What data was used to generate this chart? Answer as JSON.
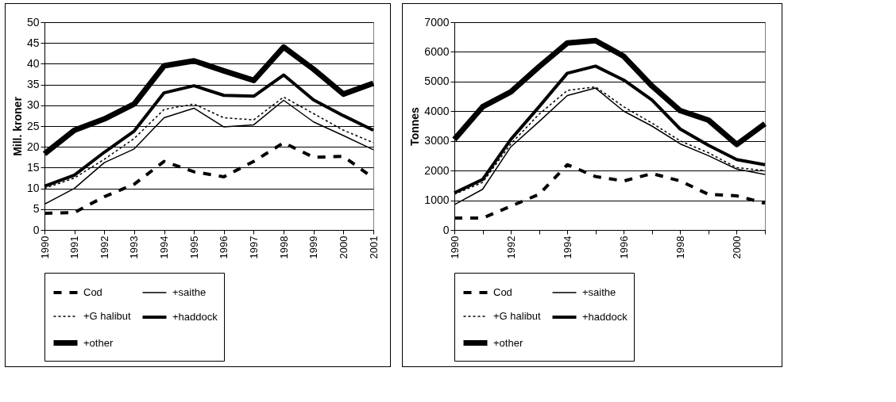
{
  "chart_data": [
    {
      "type": "line",
      "ylabel": "Mill. kroner",
      "x": [
        1990,
        1991,
        1992,
        1993,
        1994,
        1995,
        1996,
        1997,
        1998,
        1999,
        2000,
        2001
      ],
      "xlim": [
        1990,
        2001
      ],
      "xticks": [
        1990,
        1991,
        1992,
        1993,
        1994,
        1995,
        1996,
        1997,
        1998,
        1999,
        2000,
        2001
      ],
      "ylim": [
        0,
        50
      ],
      "yticks": [
        0,
        5,
        10,
        15,
        20,
        25,
        30,
        35,
        40,
        45,
        50
      ],
      "grid": "y",
      "legend": "bottom",
      "marker": "none",
      "series": [
        {
          "name": "Cod",
          "color": "#000000",
          "line_style": "dashed",
          "values": [
            4,
            4.2,
            8,
            11,
            16.5,
            14,
            12.8,
            16.5,
            21,
            17.5,
            17.7,
            12.5
          ]
        },
        {
          "name": "+saithe",
          "color": "#000000",
          "line_style": "solid",
          "values": [
            6.2,
            10,
            16.2,
            19.5,
            27,
            29.3,
            24.8,
            25.3,
            31.2,
            26,
            22.7,
            19.3
          ]
        },
        {
          "name": "+G halibut",
          "color": "#000000",
          "line_style": "dotted",
          "values": [
            10,
            12.5,
            17,
            22,
            29,
            30.3,
            27,
            26.5,
            32,
            28,
            24,
            21
          ]
        },
        {
          "name": "+haddock",
          "color": "#000000",
          "line_style": "solid",
          "values": [
            10.5,
            13.2,
            18.7,
            23.8,
            33,
            34.7,
            32.4,
            32.2,
            37.3,
            31.3,
            27.5,
            24
          ]
        },
        {
          "name": "+other",
          "color": "#000000",
          "line_style": "solid",
          "values": [
            18.3,
            24,
            26.7,
            30.3,
            39.5,
            40.7,
            38.3,
            36,
            44,
            38.7,
            32.7,
            35.3
          ]
        }
      ]
    },
    {
      "type": "line",
      "ylabel": "Tonnes",
      "x": [
        1990,
        1991,
        1992,
        1993,
        1994,
        1995,
        1996,
        1997,
        1998,
        1999,
        2000,
        2001
      ],
      "xlim": [
        1990,
        2001
      ],
      "xticks": [
        1990,
        {
          "value": 1991,
          "label": null
        },
        1992,
        {
          "value": 1993,
          "label": null
        },
        1994,
        {
          "value": 1995,
          "label": null
        },
        1996,
        {
          "value": 1997,
          "label": null
        },
        1998,
        {
          "value": 1999,
          "label": null
        },
        2000,
        {
          "value": 2001,
          "label": null
        }
      ],
      "ylim": [
        0,
        7000
      ],
      "yticks": [
        0,
        1000,
        2000,
        3000,
        4000,
        5000,
        6000,
        7000
      ],
      "grid": "y",
      "legend": "bottom",
      "marker": "none",
      "series": [
        {
          "name": "Cod",
          "color": "#000000",
          "line_style": "dashed",
          "values": [
            400,
            400,
            800,
            1200,
            2200,
            1800,
            1650,
            1900,
            1650,
            1200,
            1150,
            900
          ]
        },
        {
          "name": "+saithe",
          "color": "#000000",
          "line_style": "solid",
          "values": [
            850,
            1370,
            2800,
            3650,
            4530,
            4780,
            4000,
            3500,
            2900,
            2500,
            2050,
            1870
          ]
        },
        {
          "name": "+G halibut",
          "color": "#000000",
          "line_style": "dotted",
          "values": [
            1200,
            1600,
            2900,
            3900,
            4700,
            4820,
            4150,
            3600,
            3000,
            2600,
            2100,
            2000
          ]
        },
        {
          "name": "+haddock",
          "color": "#000000",
          "line_style": "solid",
          "values": [
            1250,
            1700,
            3050,
            4150,
            5280,
            5520,
            5050,
            4380,
            3400,
            2850,
            2370,
            2200
          ]
        },
        {
          "name": "+other",
          "color": "#000000",
          "line_style": "solid",
          "values": [
            3050,
            4150,
            4650,
            5500,
            6300,
            6380,
            5850,
            4850,
            4020,
            3700,
            2880,
            3580
          ]
        }
      ]
    }
  ]
}
